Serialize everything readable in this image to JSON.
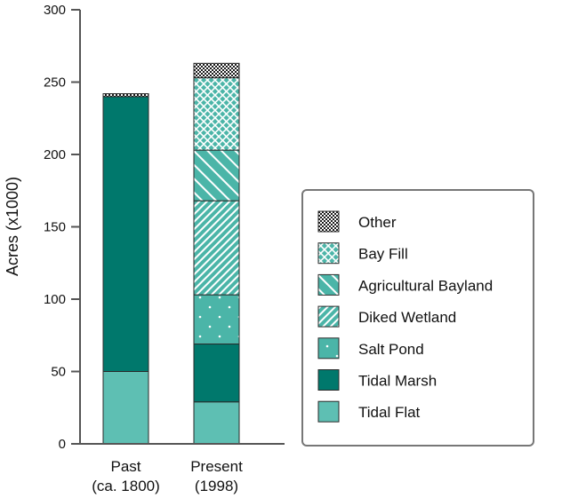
{
  "chart_data": {
    "type": "bar",
    "stacked": true,
    "categories": [
      "Past\n(ca. 1800)",
      "Present\n(1998)"
    ],
    "ylabel": "Acres (x1000)",
    "ylim": [
      0,
      300
    ],
    "yticks": [
      0,
      50,
      100,
      150,
      200,
      250,
      300
    ],
    "grid": false,
    "legend_position": "right",
    "series": [
      {
        "name": "Tidal Flat",
        "values": [
          50,
          29
        ],
        "color": "#5ebfb3",
        "pattern": "solid"
      },
      {
        "name": "Tidal Marsh",
        "values": [
          190,
          40
        ],
        "color": "#00786c",
        "pattern": "solid"
      },
      {
        "name": "Salt Pond",
        "values": [
          0,
          34
        ],
        "color": "#4bb5a8",
        "pattern": "dots"
      },
      {
        "name": "Diked Wetland",
        "values": [
          0,
          65
        ],
        "color": "#4bb5a8",
        "pattern": "dense-diagonal"
      },
      {
        "name": "Agricultural Bayland",
        "values": [
          0,
          35
        ],
        "color": "#4bb5a8",
        "pattern": "diagonal"
      },
      {
        "name": "Bay Fill",
        "values": [
          0,
          50
        ],
        "color": "#4bb5a8",
        "pattern": "crosshatch"
      },
      {
        "name": "Other",
        "values": [
          2,
          10
        ],
        "color": "#1a1a1a",
        "pattern": "checker"
      }
    ]
  }
}
